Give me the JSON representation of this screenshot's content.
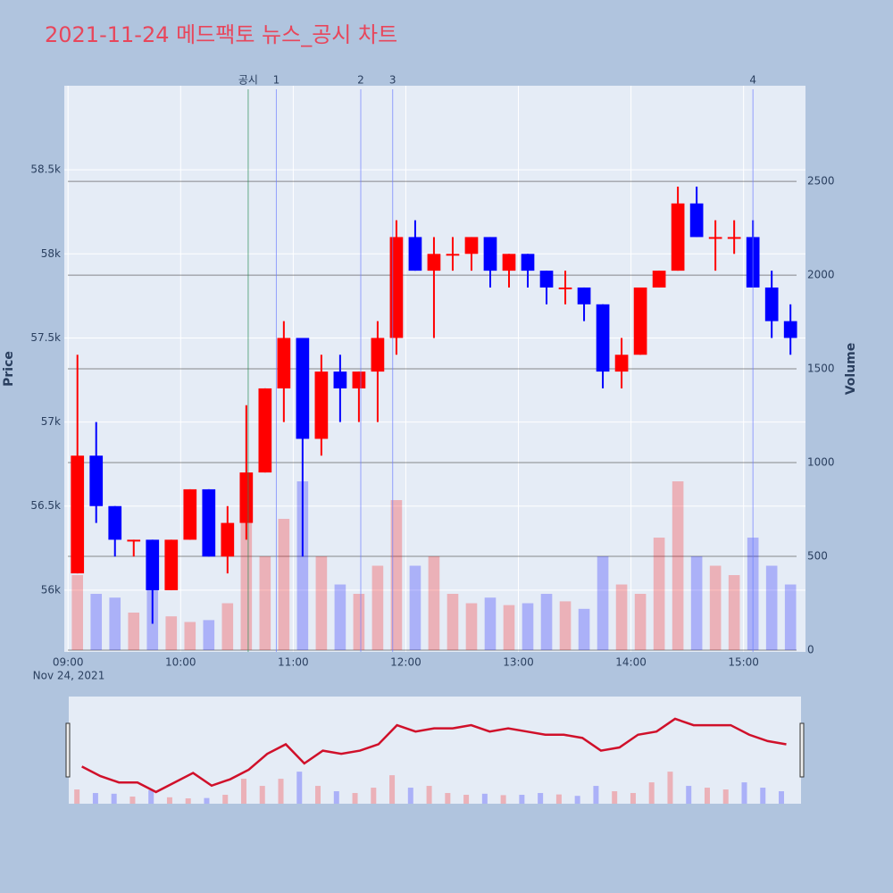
{
  "chart_data": {
    "type": "candlestick",
    "title": "2021-11-24 메드팩토 뉴스_공시 차트",
    "x_date_label": "Nov 24, 2021",
    "y_title": "Price",
    "y2_title": "Volume",
    "x": [
      "2021-11-24 09:00",
      "2021-11-24 09:10",
      "2021-11-24 09:20",
      "2021-11-24 09:30",
      "2021-11-24 09:40",
      "2021-11-24 09:50",
      "2021-11-24 10:00",
      "2021-11-24 10:10",
      "2021-11-24 10:20",
      "2021-11-24 10:30",
      "2021-11-24 10:40",
      "2021-11-24 10:50",
      "2021-11-24 11:00",
      "2021-11-24 11:10",
      "2021-11-24 11:20",
      "2021-11-24 11:30",
      "2021-11-24 11:40",
      "2021-11-24 11:50",
      "2021-11-24 12:00",
      "2021-11-24 12:10",
      "2021-11-24 12:20",
      "2021-11-24 12:30",
      "2021-11-24 12:40",
      "2021-11-24 12:50",
      "2021-11-24 13:00",
      "2021-11-24 13:10",
      "2021-11-24 13:20",
      "2021-11-24 13:30",
      "2021-11-24 13:40",
      "2021-11-24 13:50",
      "2021-11-24 14:00",
      "2021-11-24 14:10",
      "2021-11-24 14:20",
      "2021-11-24 14:30",
      "2021-11-24 14:40",
      "2021-11-24 14:50",
      "2021-11-24 15:00",
      "2021-11-24 15:10",
      "2021-11-24 15:20"
    ],
    "open": [
      56100,
      56800,
      56500,
      56300,
      56300,
      56000,
      56300,
      56600,
      56200,
      56400,
      56700,
      57200,
      57500,
      56900,
      57300,
      57200,
      57300,
      57500,
      58100,
      57900,
      58000,
      58000,
      58100,
      57900,
      58000,
      57900,
      57800,
      57800,
      57700,
      57300,
      57400,
      57800,
      57900,
      58300,
      58100,
      58100,
      58100,
      57800,
      57600
    ],
    "high": [
      57400,
      57000,
      56500,
      56300,
      56300,
      56300,
      56600,
      56600,
      56500,
      57100,
      57200,
      57600,
      57500,
      57400,
      57400,
      57300,
      57600,
      58200,
      58200,
      58100,
      58100,
      58100,
      58100,
      58000,
      58000,
      57900,
      57900,
      57800,
      57700,
      57500,
      57800,
      57900,
      58400,
      58400,
      58200,
      58200,
      58200,
      57900,
      57700
    ],
    "low": [
      56100,
      56400,
      56200,
      56200,
      55800,
      56000,
      56300,
      56200,
      56100,
      56300,
      56700,
      57000,
      56200,
      56800,
      57000,
      57000,
      57000,
      57400,
      57900,
      57500,
      57900,
      57900,
      57800,
      57800,
      57800,
      57700,
      57700,
      57600,
      57200,
      57200,
      57400,
      57800,
      57900,
      58100,
      57900,
      58000,
      57800,
      57500,
      57400
    ],
    "close": [
      56800,
      56500,
      56300,
      56300,
      56000,
      56300,
      56600,
      56200,
      56400,
      56700,
      57200,
      57500,
      56900,
      57300,
      57200,
      57300,
      57500,
      58100,
      57900,
      58000,
      58000,
      58100,
      57900,
      58000,
      57900,
      57800,
      57800,
      57700,
      57300,
      57400,
      57800,
      57900,
      58300,
      58100,
      58100,
      58100,
      57800,
      57600,
      57500
    ],
    "volume": [
      400,
      300,
      280,
      200,
      380,
      180,
      150,
      160,
      250,
      700,
      500,
      700,
      900,
      500,
      350,
      300,
      450,
      800,
      450,
      500,
      300,
      250,
      280,
      240,
      250,
      300,
      260,
      220,
      500,
      350,
      300,
      600,
      900,
      500,
      450,
      400,
      600,
      450,
      350
    ],
    "up_color": "#ff0000",
    "down_color": "#0000ff",
    "xlim": [
      "2021-11-24 08:58",
      "2021-11-24 15:33"
    ],
    "xticks": [
      {
        "value": "2021-11-24 09:00",
        "label": "09:00"
      },
      {
        "value": "2021-11-24 10:00",
        "label": "10:00"
      },
      {
        "value": "2021-11-24 11:00",
        "label": "11:00"
      },
      {
        "value": "2021-11-24 12:00",
        "label": "12:00"
      },
      {
        "value": "2021-11-24 13:00",
        "label": "13:00"
      },
      {
        "value": "2021-11-24 14:00",
        "label": "14:00"
      },
      {
        "value": "2021-11-24 15:00",
        "label": "15:00"
      }
    ],
    "ylim": [
      55633,
      59000
    ],
    "yticks": [
      {
        "value": 56000,
        "label": "56k"
      },
      {
        "value": 56500,
        "label": "56.5k"
      },
      {
        "value": 57000,
        "label": "57k"
      },
      {
        "value": 57500,
        "label": "57.5k"
      },
      {
        "value": 58000,
        "label": "58k"
      },
      {
        "value": 58500,
        "label": "58.5k"
      }
    ],
    "y2lim": [
      0,
      3010
    ],
    "y2ticks": [
      0,
      500,
      1000,
      1500,
      2000,
      2500
    ],
    "events": [
      {
        "label": "공시",
        "x": "2021-11-24 10:36",
        "color": "#2e8b57"
      },
      {
        "label": "1",
        "x": "2021-11-24 10:51",
        "color": "#6f7fff"
      },
      {
        "label": "2",
        "x": "2021-11-24 11:36",
        "color": "#6f7fff"
      },
      {
        "label": "3",
        "x": "2021-11-24 11:53",
        "color": "#6f7fff"
      },
      {
        "label": "4",
        "x": "2021-11-24 15:05",
        "color": "#6f7fff"
      }
    ],
    "grid": true
  }
}
